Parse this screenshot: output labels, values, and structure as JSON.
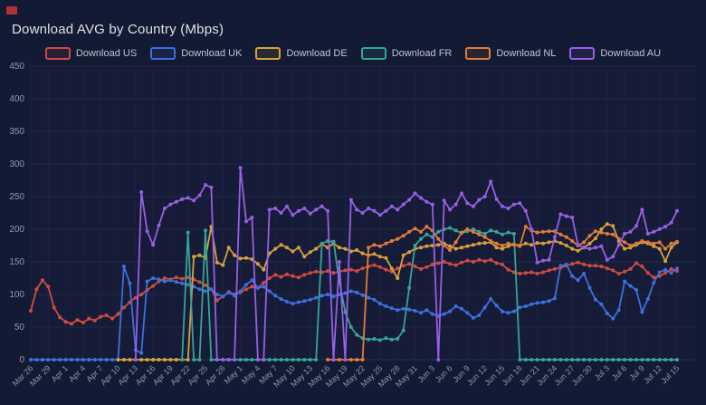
{
  "header": {
    "title": "Download AVG by Country (Mbps)"
  },
  "corner_marker_color": "#ae3238",
  "theme": {
    "background": "#131a33",
    "plot_background": "#161c38",
    "grid_color_h": "#202747",
    "grid_color_v": "#1b2140",
    "axis_line_color": "#2b3254",
    "tick_text_color": "#9298ad",
    "title_color": "#e0e2e9",
    "legend_text_color": "#c2c5d1"
  },
  "chart_data": {
    "type": "line",
    "title": "Download AVG by Country (Mbps)",
    "xlabel": "",
    "ylabel": "",
    "ylim": [
      0,
      450
    ],
    "y_ticks": [
      0,
      50,
      100,
      150,
      200,
      250,
      300,
      350,
      400,
      450
    ],
    "grid": true,
    "legend_position": "top-center",
    "x_unit": "day",
    "points_per_x_tick": 3,
    "x_tick_labels": [
      "Mar 26",
      "Mar 29",
      "Apr 1",
      "Apr 4",
      "Apr 7",
      "Apr 10",
      "Apr 13",
      "Apr 16",
      "Apr 19",
      "Apr 22",
      "Apr 25",
      "Apr 28",
      "May 1",
      "May 4",
      "May 7",
      "May 10",
      "May 13",
      "May 16",
      "May 19",
      "May 22",
      "May 25",
      "May 28",
      "May 31",
      "Jun 3",
      "Jun 6",
      "Jun 9",
      "Jun 12",
      "Jun 15",
      "Jun 18",
      "Jun 21",
      "Jun 24",
      "Jun 27",
      "Jun 30",
      "Jul 3",
      "Jul 6",
      "Jul 9",
      "Jul 12",
      "Jul 15"
    ],
    "series": [
      {
        "name": "Download US",
        "color": "#d04a41",
        "values": [
          75,
          108,
          122,
          112,
          80,
          65,
          58,
          55,
          61,
          57,
          63,
          60,
          66,
          68,
          63,
          70,
          80,
          88,
          95,
          100,
          107,
          113,
          120,
          125,
          123,
          126,
          124,
          126,
          123,
          119,
          114,
          108,
          91,
          97,
          104,
          100,
          103,
          108,
          112,
          110,
          118,
          125,
          130,
          127,
          131,
          128,
          126,
          130,
          133,
          135,
          134,
          136,
          133,
          135,
          137,
          138,
          136,
          140,
          143,
          145,
          142,
          138,
          135,
          140,
          144,
          147,
          143,
          139,
          142,
          146,
          148,
          150,
          147,
          145,
          149,
          152,
          150,
          153,
          151,
          153,
          148,
          146,
          138,
          134,
          132,
          133,
          134,
          132,
          134,
          137,
          139,
          141,
          144,
          147,
          149,
          146,
          144,
          144,
          143,
          140,
          137,
          132,
          135,
          139,
          148,
          143,
          133,
          126,
          128,
          133,
          139,
          136
        ]
      },
      {
        "name": "Download UK",
        "color": "#3d6fdd",
        "values": [
          0,
          0,
          0,
          0,
          0,
          0,
          0,
          0,
          0,
          0,
          0,
          0,
          0,
          0,
          0,
          0,
          143,
          117,
          15,
          10,
          120,
          125,
          123,
          120,
          122,
          119,
          117,
          115,
          112,
          108,
          105,
          108,
          100,
          97,
          103,
          98,
          105,
          115,
          122,
          110,
          112,
          105,
          98,
          93,
          89,
          86,
          88,
          90,
          92,
          95,
          98,
          100,
          97,
          100,
          102,
          105,
          103,
          99,
          95,
          92,
          86,
          82,
          79,
          76,
          78,
          77,
          75,
          72,
          76,
          70,
          67,
          70,
          74,
          82,
          78,
          72,
          64,
          68,
          80,
          93,
          83,
          74,
          72,
          74,
          80,
          82,
          85,
          87,
          88,
          90,
          94,
          144,
          146,
          128,
          122,
          132,
          110,
          92,
          85,
          71,
          63,
          76,
          120,
          113,
          107,
          73,
          93,
          118,
          134,
          138,
          133,
          140
        ]
      },
      {
        "name": "Download DE",
        "color": "#d5a13c",
        "values": [
          null,
          null,
          null,
          null,
          null,
          null,
          null,
          null,
          null,
          null,
          null,
          null,
          null,
          null,
          null,
          0,
          0,
          0,
          0,
          0,
          0,
          0,
          0,
          0,
          0,
          0,
          0,
          0,
          158,
          160,
          156,
          204,
          149,
          145,
          172,
          160,
          155,
          156,
          154,
          147,
          138,
          163,
          170,
          176,
          172,
          166,
          172,
          158,
          165,
          170,
          177,
          172,
          178,
          172,
          170,
          166,
          168,
          163,
          160,
          162,
          158,
          156,
          140,
          125,
          160,
          165,
          170,
          172,
          174,
          175,
          176,
          178,
          174,
          170,
          172,
          174,
          176,
          178,
          179,
          180,
          172,
          170,
          174,
          177,
          175,
          178,
          176,
          179,
          178,
          180,
          182,
          179,
          175,
          170,
          167,
          172,
          178,
          186,
          200,
          208,
          205,
          182,
          170,
          172,
          176,
          180,
          178,
          174,
          170,
          151,
          172,
          180
        ]
      },
      {
        "name": "Download FR",
        "color": "#36a593",
        "values": [
          null,
          null,
          null,
          null,
          null,
          null,
          null,
          null,
          null,
          null,
          null,
          null,
          null,
          null,
          null,
          null,
          null,
          null,
          null,
          null,
          null,
          null,
          null,
          null,
          null,
          null,
          0,
          195,
          0,
          0,
          198,
          0,
          0,
          0,
          0,
          0,
          0,
          0,
          0,
          0,
          0,
          0,
          0,
          0,
          0,
          0,
          0,
          0,
          0,
          0,
          178,
          182,
          181,
          120,
          73,
          50,
          38,
          33,
          31,
          32,
          30,
          33,
          31,
          32,
          45,
          110,
          175,
          185,
          192,
          188,
          196,
          200,
          202,
          198,
          194,
          197,
          200,
          196,
          193,
          198,
          196,
          192,
          195,
          193,
          0,
          0,
          0,
          0,
          0,
          0,
          0,
          0,
          0,
          0,
          0,
          0,
          0,
          0,
          0,
          0,
          0,
          0,
          0,
          0,
          0,
          0,
          0,
          0,
          0,
          0,
          0,
          0
        ]
      },
      {
        "name": "Download NL",
        "color": "#e07b39",
        "values": [
          null,
          null,
          null,
          null,
          null,
          null,
          null,
          null,
          null,
          null,
          null,
          null,
          null,
          null,
          null,
          null,
          null,
          null,
          null,
          null,
          null,
          null,
          null,
          null,
          null,
          null,
          null,
          null,
          null,
          null,
          null,
          null,
          null,
          null,
          null,
          null,
          null,
          null,
          null,
          null,
          null,
          null,
          null,
          null,
          null,
          null,
          null,
          null,
          null,
          null,
          null,
          0,
          0,
          0,
          0,
          0,
          0,
          0,
          172,
          176,
          174,
          178,
          182,
          185,
          190,
          196,
          201,
          196,
          204,
          198,
          185,
          175,
          168,
          180,
          195,
          200,
          196,
          192,
          188,
          182,
          178,
          175,
          178,
          176,
          174,
          204,
          198,
          195,
          196,
          197,
          197,
          192,
          188,
          182,
          175,
          180,
          190,
          197,
          195,
          193,
          192,
          185,
          180,
          175,
          178,
          182,
          180,
          178,
          180,
          170,
          178,
          181
        ]
      },
      {
        "name": "Download AU",
        "color": "#975fe4",
        "values": [
          null,
          null,
          null,
          null,
          null,
          null,
          null,
          null,
          null,
          null,
          null,
          null,
          null,
          null,
          null,
          null,
          null,
          null,
          0,
          257,
          197,
          176,
          206,
          232,
          238,
          242,
          246,
          248,
          244,
          252,
          268,
          264,
          0,
          0,
          0,
          0,
          294,
          212,
          218,
          0,
          0,
          230,
          232,
          225,
          235,
          222,
          228,
          232,
          224,
          230,
          235,
          228,
          0,
          150,
          0,
          245,
          230,
          225,
          232,
          228,
          222,
          228,
          235,
          230,
          238,
          245,
          255,
          248,
          242,
          238,
          0,
          244,
          230,
          238,
          255,
          240,
          235,
          245,
          250,
          273,
          246,
          235,
          232,
          238,
          240,
          228,
          200,
          149,
          152,
          153,
          188,
          223,
          220,
          218,
          176,
          172,
          170,
          172,
          174,
          153,
          158,
          176,
          193,
          196,
          205,
          230,
          193,
          196,
          200,
          204,
          210,
          228
        ]
      }
    ]
  }
}
